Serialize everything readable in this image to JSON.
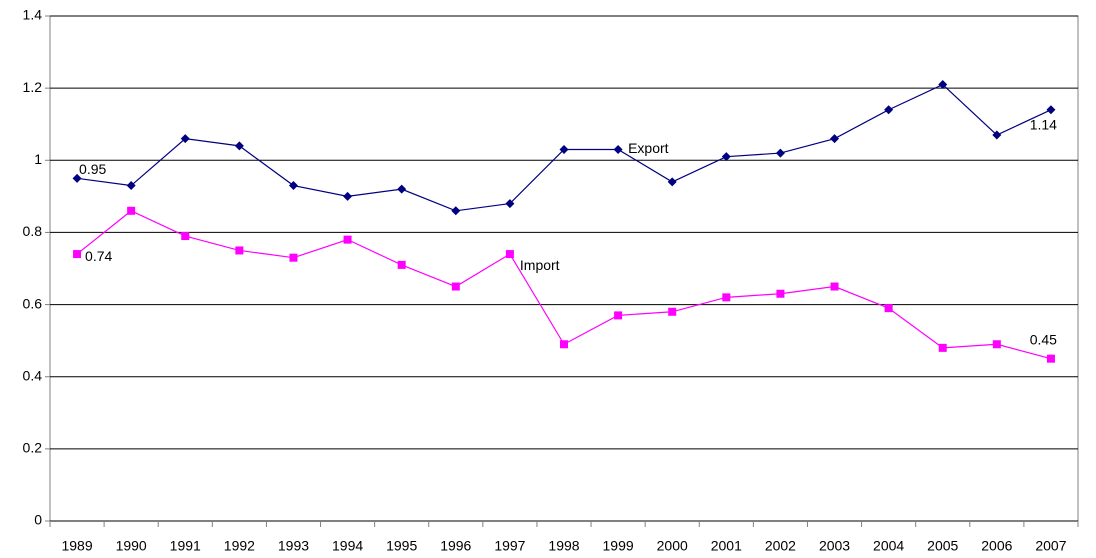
{
  "chart_data": {
    "type": "line",
    "categories": [
      "1989",
      "1990",
      "1991",
      "1992",
      "1993",
      "1994",
      "1995",
      "1996",
      "1997",
      "1998",
      "1999",
      "2000",
      "2001",
      "2002",
      "2003",
      "2004",
      "2005",
      "2006",
      "2007"
    ],
    "series": [
      {
        "name": "Export",
        "color": "#000080",
        "marker": "diamond",
        "labeled_points": [
          0,
          18
        ],
        "values": [
          0.95,
          0.93,
          1.06,
          1.04,
          0.93,
          0.9,
          0.92,
          0.86,
          0.88,
          1.03,
          1.03,
          0.94,
          1.01,
          1.02,
          1.06,
          1.14,
          1.21,
          1.07,
          1.14
        ]
      },
      {
        "name": "Import",
        "color": "#ff00ff",
        "marker": "square",
        "labeled_points": [
          0,
          18
        ],
        "values": [
          0.74,
          0.86,
          0.79,
          0.75,
          0.73,
          0.78,
          0.71,
          0.65,
          0.74,
          0.49,
          0.57,
          0.58,
          0.62,
          0.63,
          0.65,
          0.59,
          0.48,
          0.49,
          0.45
        ]
      }
    ],
    "ylim": [
      0,
      1.4
    ],
    "yticks": [
      0,
      0.2,
      0.4,
      0.6,
      0.8,
      1,
      1.2,
      1.4
    ],
    "grid": true
  }
}
